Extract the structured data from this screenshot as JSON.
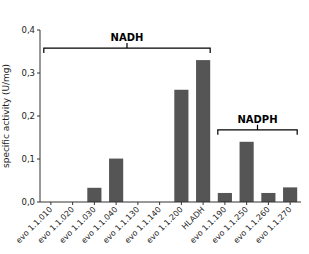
{
  "chart_data": {
    "type": "bar",
    "categories": [
      "evo 1.1.010",
      "evo 1.1.020",
      "evo 1.1.030",
      "evo 1.1.040",
      "evo 1.1.130",
      "evo 1.1.140",
      "evo 1.1.200",
      "HLADH",
      "evo 1.1.190",
      "evo 1.1.250",
      "evo 1.1.260",
      "evo 1.1.270"
    ],
    "values": [
      0.0,
      0.0,
      0.033,
      0.101,
      0.0,
      0.0,
      0.261,
      0.33,
      0.021,
      0.14,
      0.021,
      0.034
    ],
    "color": "#555555",
    "y_label": "specific activity (U/mg)",
    "ylim": [
      0,
      0.4
    ],
    "yticks": [
      {
        "value": 0.0,
        "label": "0,0"
      },
      {
        "value": 0.1,
        "label": "0,1"
      },
      {
        "value": 0.2,
        "label": "0,2"
      },
      {
        "value": 0.3,
        "label": "0,3"
      },
      {
        "value": 0.4,
        "label": "0,4"
      }
    ],
    "grid": false,
    "annotations": [
      {
        "text": "NADH",
        "from": "evo 1.1.010",
        "to": "HLADH"
      },
      {
        "text": "NADPH",
        "from": "evo 1.1.190",
        "to": "evo 1.1.270"
      }
    ]
  }
}
